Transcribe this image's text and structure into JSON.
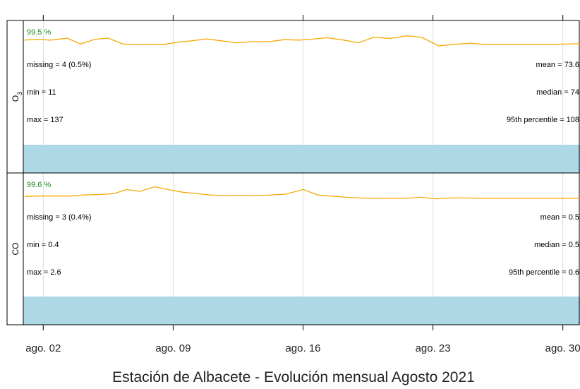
{
  "chart_data": {
    "type": "line",
    "title": "Estación de Albacete - Evolución mensual Agosto 2021",
    "x_tick_labels": [
      "ago. 02",
      "ago. 09",
      "ago. 16",
      "ago. 23",
      "ago. 30"
    ],
    "x_ticks_day": [
      2,
      9,
      16,
      23,
      30
    ],
    "x_range_day": [
      1,
      31
    ],
    "grid": "vertical",
    "colors": {
      "line": "#f5a800",
      "band": "#add8e6",
      "pct_text": "#1a8a1a"
    },
    "panels": [
      {
        "name": "O",
        "name_sub": "3",
        "pct": "99.5 %",
        "stats_left": [
          "missing = 4 (0.5%)",
          "min = 11",
          "max = 137"
        ],
        "stats_right": [
          "mean = 73.6",
          "median = 74",
          "95th percentile = 108"
        ],
        "ylim": [
          0,
          100
        ],
        "series": {
          "x": [
            1.0,
            1.6,
            2.4,
            3.3,
            4.0,
            4.8,
            5.5,
            6.3,
            7.0,
            7.7,
            8.5,
            9.2,
            10.0,
            10.8,
            11.6,
            12.4,
            13.3,
            14.2,
            15.0,
            15.8,
            16.4,
            17.3,
            18.2,
            19.0,
            19.8,
            20.7,
            21.6,
            22.4,
            23.3,
            24.2,
            25.0,
            25.7,
            26.5,
            27.3,
            28.0,
            28.7,
            29.5,
            30.4,
            31.0
          ],
          "values": [
            95,
            97,
            95,
            100,
            85,
            97,
            100,
            85,
            83,
            84,
            84,
            89,
            93,
            98,
            93,
            88,
            91,
            91,
            96,
            95,
            97,
            101,
            95,
            88,
            102,
            99,
            106,
            102,
            80,
            84,
            87,
            84,
            84,
            84,
            84,
            84,
            84,
            85,
            86
          ]
        }
      },
      {
        "name": "CO",
        "pct": "99.6 %",
        "stats_left": [
          "missing = 3 (0.4%)",
          "min = 0.4",
          "max = 2.6"
        ],
        "stats_right": [
          "mean = 0.5",
          "median = 0.5",
          "95th percentile = 0.6"
        ],
        "ylim": [
          0,
          100
        ],
        "series": {
          "x": [
            1.0,
            1.8,
            2.6,
            3.4,
            4.2,
            5.0,
            5.8,
            6.5,
            7.2,
            8.0,
            8.8,
            9.5,
            10.3,
            11.0,
            11.8,
            12.6,
            13.5,
            14.3,
            15.1,
            16.0,
            16.8,
            17.5,
            18.3,
            19.0,
            19.8,
            20.6,
            21.5,
            22.3,
            23.2,
            24.0,
            24.8,
            25.6,
            26.4,
            27.2,
            28.0,
            28.8,
            29.6,
            30.4,
            31.0
          ],
          "values": [
            85,
            86,
            86,
            86,
            89,
            90,
            92,
            103,
            98,
            110,
            102,
            96,
            92,
            89,
            87,
            88,
            87,
            89,
            91,
            103,
            89,
            86,
            83,
            81,
            80,
            80,
            80,
            83,
            79,
            81,
            81,
            80,
            80,
            80,
            80,
            80,
            80,
            80,
            80
          ]
        }
      }
    ]
  }
}
